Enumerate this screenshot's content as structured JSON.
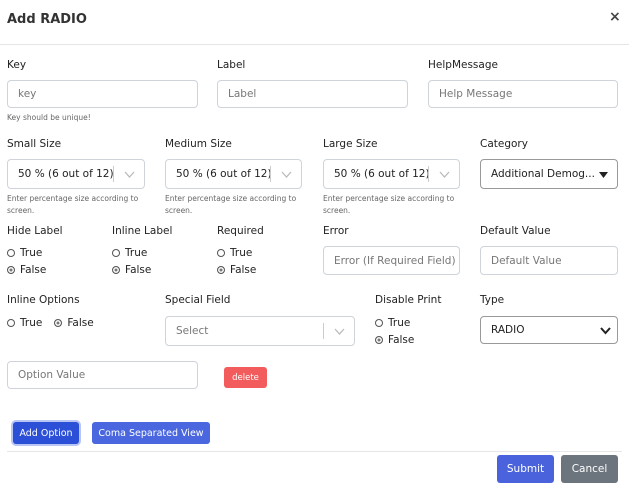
{
  "header": {
    "title": "Add RADIO",
    "close": "×"
  },
  "form": {
    "key": {
      "label": "Key",
      "placeholder": "key",
      "help": "Key should be unique!"
    },
    "label": {
      "label": "Label",
      "placeholder": "Label"
    },
    "help_message": {
      "label": "HelpMessage",
      "placeholder": "Help Message"
    },
    "small_size": {
      "label": "Small Size",
      "value": "50 % (6 out of 12)",
      "help": "Enter percentage size according to screen."
    },
    "medium_size": {
      "label": "Medium Size",
      "value": "50 % (6 out of 12)",
      "help": "Enter percentage size according to screen."
    },
    "large_size": {
      "label": "Large Size",
      "value": "50 % (6 out of 12)",
      "help": "Enter percentage size according to screen."
    },
    "category": {
      "label": "Category",
      "value": "Additional Demog..."
    },
    "hide_label": {
      "label": "Hide Label",
      "options": [
        "True",
        "False"
      ],
      "selected": 1
    },
    "inline_label": {
      "label": "Inline Label",
      "options": [
        "True",
        "False"
      ],
      "selected": 1
    },
    "required": {
      "label": "Required",
      "options": [
        "True",
        "False"
      ],
      "selected": 1
    },
    "error": {
      "label": "Error",
      "placeholder": "Error (If Required Field)"
    },
    "default_value": {
      "label": "Default Value",
      "placeholder": "Default Value"
    },
    "inline_options": {
      "label": "Inline Options",
      "options": [
        "True",
        "False"
      ],
      "selected": 1
    },
    "special_field": {
      "label": "Special Field",
      "placeholder": "Select"
    },
    "disable_print": {
      "label": "Disable Print",
      "options": [
        "True",
        "False"
      ],
      "selected": 1
    },
    "type": {
      "label": "Type",
      "value": "RADIO"
    },
    "option_value": {
      "placeholder": "Option Value"
    },
    "delete": "delete",
    "add_option": "Add Option",
    "coma_view": "Coma Separated View"
  },
  "footer": {
    "submit": "Submit",
    "cancel": "Cancel"
  }
}
